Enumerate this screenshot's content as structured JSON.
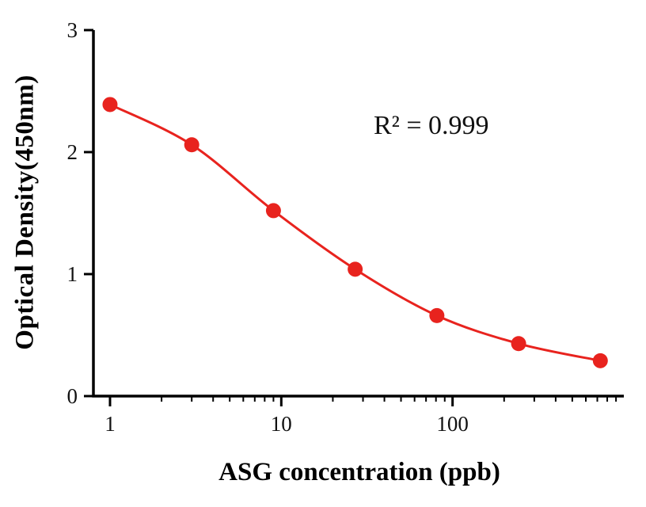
{
  "chart_data": {
    "type": "line",
    "subtype": "scatter-with-smooth-line",
    "x": [
      1,
      3,
      9,
      27,
      81,
      243,
      729
    ],
    "y": [
      2.39,
      2.06,
      1.52,
      1.04,
      0.66,
      0.43,
      0.29
    ],
    "x_scale": "log",
    "xlim": [
      0.8,
      1000
    ],
    "ylim": [
      0,
      3
    ],
    "x_major_ticks": [
      1,
      10,
      100
    ],
    "x_major_tick_labels": [
      "1",
      "10",
      "100"
    ],
    "y_ticks": [
      0,
      1,
      2,
      3
    ],
    "y_tick_labels": [
      "0",
      "1",
      "2",
      "3"
    ],
    "xlabel": "ASG concentration (ppb)",
    "ylabel": "Optical Density(450nm)",
    "annotation": "R² = 0.999",
    "grid": false,
    "legend": null,
    "colors": {
      "line": "#e8231e",
      "marker": "#e8231e",
      "axis": "#000000",
      "tick_label": "#111111"
    }
  }
}
